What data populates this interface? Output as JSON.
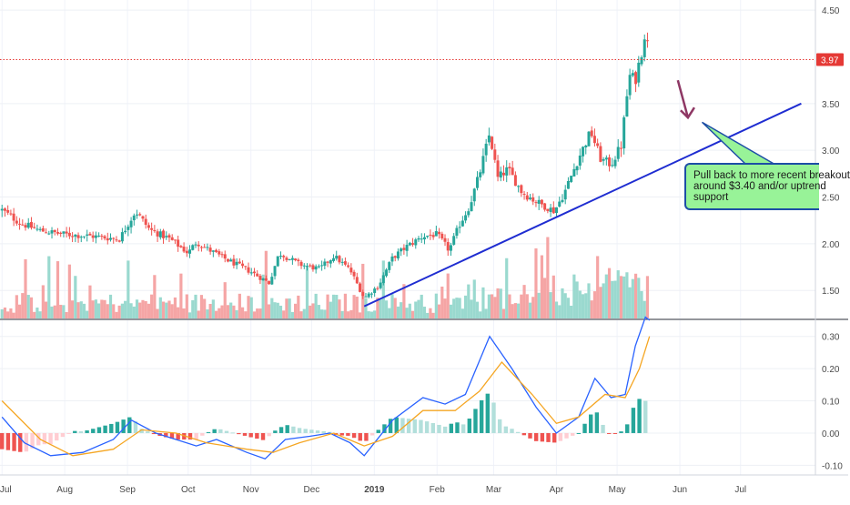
{
  "chart_data": [
    {
      "type": "candlestick",
      "ylim": [
        1.2,
        4.55
      ],
      "price_ticks": [
        "4.50",
        "3.50",
        "3.00",
        "2.50",
        "2.00",
        "1.50"
      ],
      "last_price": "3.97",
      "colors": {
        "up": "#26a69a",
        "down": "#ef5350",
        "volume_up": "#9ad9cf",
        "volume_down": "#f5a5a5",
        "trendline": "#1f2dd1",
        "arrow": "#8e3764",
        "last_price_line": "#e53935"
      },
      "price_path": [
        [
          "2018-07-01",
          2.36
        ],
        [
          "2018-07-10",
          2.22
        ],
        [
          "2018-07-20",
          2.14
        ],
        [
          "2018-08-01",
          2.1
        ],
        [
          "2018-08-15",
          2.08
        ],
        [
          "2018-08-28",
          2.05
        ],
        [
          "2018-09-05",
          2.35
        ],
        [
          "2018-09-12",
          2.15
        ],
        [
          "2018-09-22",
          2.05
        ],
        [
          "2018-10-01",
          1.9
        ],
        [
          "2018-10-05",
          2.02
        ],
        [
          "2018-10-10",
          1.95
        ],
        [
          "2018-10-20",
          1.83
        ],
        [
          "2018-11-01",
          1.7
        ],
        [
          "2018-11-10",
          1.58
        ],
        [
          "2018-11-15",
          1.9
        ],
        [
          "2018-11-25",
          1.78
        ],
        [
          "2018-12-05",
          1.73
        ],
        [
          "2018-12-12",
          1.87
        ],
        [
          "2018-12-20",
          1.72
        ],
        [
          "2018-12-27",
          1.42
        ],
        [
          "2019-01-03",
          1.55
        ],
        [
          "2019-01-10",
          1.85
        ],
        [
          "2019-01-17",
          1.97
        ],
        [
          "2019-01-25",
          2.08
        ],
        [
          "2019-02-01",
          2.1
        ],
        [
          "2019-02-07",
          1.93
        ],
        [
          "2019-02-12",
          2.2
        ],
        [
          "2019-02-17",
          2.4
        ],
        [
          "2019-02-22",
          2.75
        ],
        [
          "2019-02-27",
          3.18
        ],
        [
          "2019-03-03",
          2.7
        ],
        [
          "2019-03-08",
          2.8
        ],
        [
          "2019-03-15",
          2.55
        ],
        [
          "2019-03-22",
          2.45
        ],
        [
          "2019-03-31",
          2.35
        ],
        [
          "2019-04-05",
          2.55
        ],
        [
          "2019-04-12",
          2.92
        ],
        [
          "2019-04-18",
          3.2
        ],
        [
          "2019-04-23",
          2.9
        ],
        [
          "2019-04-28",
          2.85
        ],
        [
          "2019-05-03",
          3.05
        ],
        [
          "2019-05-07",
          3.8
        ],
        [
          "2019-05-10",
          3.75
        ],
        [
          "2019-05-13",
          4.05
        ],
        [
          "2019-05-15",
          4.3
        ],
        [
          "2019-05-17",
          3.97
        ]
      ],
      "trendline": {
        "x": [
          "2018-12-27",
          "2019-07-31"
        ],
        "y": [
          1.33,
          3.5
        ]
      },
      "annotation": {
        "text": "Pull back to more recent breakout\naround $3.40 and/or uptrend\nsupport",
        "anchor_x": "2019-06-12",
        "anchor_y": 3.3
      },
      "arrow": {
        "x": [
          "2019-05-31",
          "2019-06-05"
        ],
        "y": [
          3.75,
          3.35
        ]
      }
    },
    {
      "type": "line",
      "indicator": "MACD",
      "ylim": [
        -0.13,
        0.35
      ],
      "ticks": [
        "0.30",
        "0.20",
        "0.10",
        "0.00",
        "-0.10"
      ],
      "series": [
        {
          "color": "#2962ff",
          "values": [
            [
              "2018-07-01",
              0.05
            ],
            [
              "2018-07-12",
              -0.03
            ],
            [
              "2018-07-25",
              -0.07
            ],
            [
              "2018-08-10",
              -0.06
            ],
            [
              "2018-08-25",
              -0.02
            ],
            [
              "2018-09-03",
              0.04
            ],
            [
              "2018-09-15",
              0.0
            ],
            [
              "2018-09-25",
              -0.02
            ],
            [
              "2018-10-05",
              -0.04
            ],
            [
              "2018-10-15",
              -0.02
            ],
            [
              "2018-10-30",
              -0.06
            ],
            [
              "2018-11-08",
              -0.08
            ],
            [
              "2018-11-18",
              -0.02
            ],
            [
              "2018-11-30",
              -0.01
            ],
            [
              "2018-12-10",
              0.0
            ],
            [
              "2018-12-20",
              -0.03
            ],
            [
              "2018-12-27",
              -0.07
            ],
            [
              "2019-01-10",
              0.04
            ],
            [
              "2019-01-25",
              0.11
            ],
            [
              "2019-02-05",
              0.09
            ],
            [
              "2019-02-15",
              0.12
            ],
            [
              "2019-02-27",
              0.3
            ],
            [
              "2019-03-10",
              0.2
            ],
            [
              "2019-03-22",
              0.08
            ],
            [
              "2019-04-01",
              0.0
            ],
            [
              "2019-04-12",
              0.05
            ],
            [
              "2019-04-20",
              0.17
            ],
            [
              "2019-04-28",
              0.11
            ],
            [
              "2019-05-05",
              0.12
            ],
            [
              "2019-05-10",
              0.27
            ],
            [
              "2019-05-15",
              0.36
            ],
            [
              "2019-05-17",
              0.35
            ]
          ]
        },
        {
          "color": "#f5a623",
          "values": [
            [
              "2018-07-01",
              0.1
            ],
            [
              "2018-07-20",
              -0.02
            ],
            [
              "2018-08-05",
              -0.07
            ],
            [
              "2018-08-25",
              -0.05
            ],
            [
              "2018-09-08",
              0.01
            ],
            [
              "2018-09-25",
              0.0
            ],
            [
              "2018-10-10",
              -0.03
            ],
            [
              "2018-10-30",
              -0.05
            ],
            [
              "2018-11-12",
              -0.06
            ],
            [
              "2018-11-25",
              -0.03
            ],
            [
              "2018-12-12",
              0.0
            ],
            [
              "2018-12-27",
              -0.04
            ],
            [
              "2019-01-10",
              -0.01
            ],
            [
              "2019-01-25",
              0.07
            ],
            [
              "2019-02-10",
              0.07
            ],
            [
              "2019-02-22",
              0.13
            ],
            [
              "2019-03-05",
              0.22
            ],
            [
              "2019-03-20",
              0.12
            ],
            [
              "2019-04-01",
              0.03
            ],
            [
              "2019-04-12",
              0.05
            ],
            [
              "2019-04-25",
              0.12
            ],
            [
              "2019-05-05",
              0.11
            ],
            [
              "2019-05-12",
              0.2
            ],
            [
              "2019-05-17",
              0.3
            ]
          ]
        }
      ]
    }
  ],
  "x_axis": {
    "range": [
      "2018-06-30",
      "2019-08-07"
    ],
    "labels": [
      {
        "text": "Jul",
        "date": "2018-07-01"
      },
      {
        "text": "Aug",
        "date": "2018-08-01"
      },
      {
        "text": "Sep",
        "date": "2018-09-01"
      },
      {
        "text": "Oct",
        "date": "2018-10-01"
      },
      {
        "text": "Nov",
        "date": "2018-11-01"
      },
      {
        "text": "Dec",
        "date": "2018-12-01"
      },
      {
        "text": "2019",
        "date": "2019-01-01",
        "bold": true
      },
      {
        "text": "Feb",
        "date": "2019-02-01"
      },
      {
        "text": "Mar",
        "date": "2019-03-01"
      },
      {
        "text": "Apr",
        "date": "2019-04-01"
      },
      {
        "text": "May",
        "date": "2019-05-01"
      },
      {
        "text": "Jun",
        "date": "2019-06-01"
      },
      {
        "text": "Jul",
        "date": "2019-07-01"
      }
    ]
  }
}
